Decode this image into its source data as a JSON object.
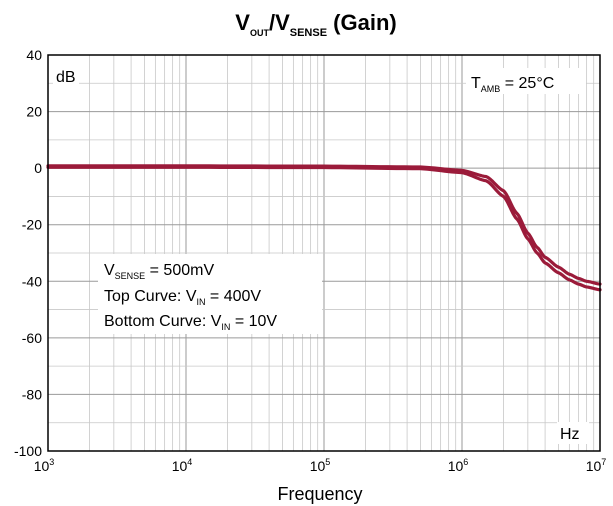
{
  "chart_data": {
    "type": "line",
    "title": {
      "main": "V",
      "sub1": "OUT",
      "mid": "/V",
      "sub2": "SENSE",
      "tail": " (Gain)"
    },
    "xlabel": "Frequency",
    "ylabel_unit": "dB",
    "x_unit": "Hz",
    "xscale": "log",
    "xlim": [
      1000,
      10000000
    ],
    "ylim": [
      -100,
      40
    ],
    "grid": true,
    "x_ticks": [
      {
        "base": "10",
        "exp": "3",
        "value": 1000
      },
      {
        "base": "10",
        "exp": "4",
        "value": 10000
      },
      {
        "base": "10",
        "exp": "5",
        "value": 100000
      },
      {
        "base": "10",
        "exp": "6",
        "value": 1000000
      },
      {
        "base": "10",
        "exp": "7",
        "value": 10000000
      }
    ],
    "y_ticks": [
      "40",
      "20",
      "0",
      "-20",
      "-40",
      "-60",
      "-80",
      "-100"
    ],
    "series": [
      {
        "color": "#9b1b3a",
        "x": [
          1000,
          10000,
          100000,
          500000,
          1000000,
          1500000,
          2000000,
          2500000,
          3000000,
          3500000,
          4000000,
          5000000,
          6000000,
          7000000,
          8000000,
          10000000
        ],
        "y": [
          0.8,
          0.8,
          0.7,
          0.4,
          -0.8,
          -3,
          -8,
          -16,
          -23,
          -28,
          -31.5,
          -35,
          -37.5,
          -39,
          -40,
          -41
        ]
      },
      {
        "color": "#9b1b3a",
        "x": [
          1000,
          10000,
          100000,
          500000,
          1000000,
          1500000,
          2000000,
          2500000,
          3000000,
          3500000,
          4000000,
          5000000,
          6000000,
          7000000,
          8000000,
          10000000
        ],
        "y": [
          0.3,
          0.3,
          0.2,
          -0.2,
          -1.6,
          -4.5,
          -10,
          -18,
          -25,
          -30,
          -33.5,
          -37,
          -39.5,
          -41,
          -42,
          -43
        ]
      }
    ],
    "annotations": {
      "temp": {
        "main": "T",
        "sub": "AMB",
        "rest": " = 25°C"
      },
      "vsense": {
        "main": "V",
        "sub": "SENSE",
        "rest": " = 500mV"
      },
      "top_curve": {
        "pre": "Top Curve:  V",
        "sub": "IN",
        "rest": " = 400V"
      },
      "bottom_curve": {
        "pre": "Bottom Curve: V",
        "sub": "IN",
        "rest": " = 10V"
      }
    }
  }
}
